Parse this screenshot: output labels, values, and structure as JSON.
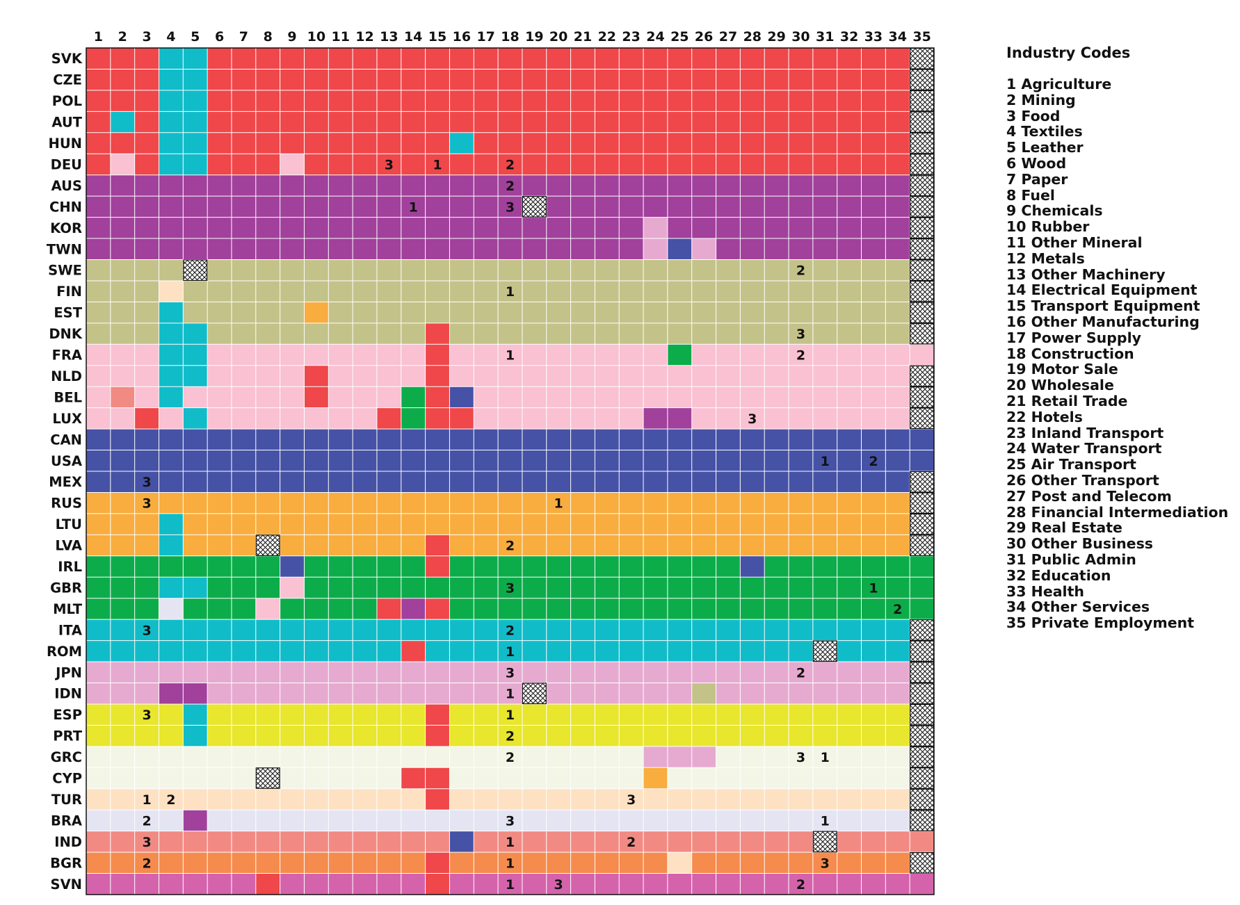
{
  "chart_data": {
    "type": "heatmap",
    "x_categories": [
      "1",
      "2",
      "3",
      "4",
      "5",
      "6",
      "7",
      "8",
      "9",
      "10",
      "11",
      "12",
      "13",
      "14",
      "15",
      "16",
      "17",
      "18",
      "19",
      "20",
      "21",
      "22",
      "23",
      "24",
      "25",
      "26",
      "27",
      "28",
      "29",
      "30",
      "31",
      "32",
      "33",
      "34",
      "35"
    ],
    "y_categories": [
      "SVK",
      "CZE",
      "POL",
      "AUT",
      "HUN",
      "DEU",
      "AUS",
      "CHN",
      "KOR",
      "TWN",
      "SWE",
      "FIN",
      "EST",
      "DNK",
      "FRA",
      "NLD",
      "BEL",
      "LUX",
      "CAN",
      "USA",
      "MEX",
      "RUS",
      "LTU",
      "LVA",
      "IRL",
      "GBR",
      "MLT",
      "ITA",
      "ROM",
      "JPN",
      "IDN",
      "ESP",
      "PRT",
      "GRC",
      "CYP",
      "TUR",
      "BRA",
      "IND",
      "BGR",
      "SVN"
    ],
    "palette": {
      "R": "#ef474a",
      "P": "#a1419c",
      "O": "#c3c289",
      "K": "#f9c1d2",
      "B": "#4652a6",
      "Y": "#f8ad3e",
      "G": "#0dac4a",
      "C": "#11bcc9",
      "M": "#e6aad0",
      "E": "#e8e62d",
      "W": "#f3f6e6",
      "T": "#fde1c2",
      "V": "#e4e4f2",
      "S": "#f28a84",
      "F": "#f58b4c",
      "N": "#d563ac",
      "X": "#ffffff"
    },
    "row_base": [
      "R",
      "R",
      "R",
      "R",
      "R",
      "R",
      "P",
      "P",
      "P",
      "P",
      "O",
      "O",
      "O",
      "O",
      "K",
      "K",
      "K",
      "K",
      "B",
      "B",
      "B",
      "Y",
      "Y",
      "Y",
      "G",
      "G",
      "G",
      "C",
      "C",
      "M",
      "M",
      "E",
      "E",
      "W",
      "W",
      "T",
      "V",
      "S",
      "F",
      "N"
    ],
    "overrides": [
      [
        0,
        3,
        "C"
      ],
      [
        0,
        4,
        "C"
      ],
      [
        0,
        34,
        "X"
      ],
      [
        1,
        3,
        "C"
      ],
      [
        1,
        4,
        "C"
      ],
      [
        1,
        34,
        "X"
      ],
      [
        2,
        3,
        "C"
      ],
      [
        2,
        4,
        "C"
      ],
      [
        2,
        34,
        "X"
      ],
      [
        3,
        1,
        "C"
      ],
      [
        3,
        3,
        "C"
      ],
      [
        3,
        4,
        "C"
      ],
      [
        3,
        34,
        "X"
      ],
      [
        4,
        3,
        "C"
      ],
      [
        4,
        4,
        "C"
      ],
      [
        4,
        15,
        "C"
      ],
      [
        4,
        34,
        "X"
      ],
      [
        5,
        1,
        "K"
      ],
      [
        5,
        3,
        "C"
      ],
      [
        5,
        4,
        "C"
      ],
      [
        5,
        8,
        "K"
      ],
      [
        5,
        34,
        "X"
      ],
      [
        6,
        34,
        "X"
      ],
      [
        7,
        18,
        "X"
      ],
      [
        7,
        34,
        "X"
      ],
      [
        8,
        23,
        "M"
      ],
      [
        8,
        34,
        "X"
      ],
      [
        9,
        23,
        "M"
      ],
      [
        9,
        24,
        "B"
      ],
      [
        9,
        25,
        "M"
      ],
      [
        9,
        34,
        "X"
      ],
      [
        10,
        4,
        "X"
      ],
      [
        10,
        34,
        "X"
      ],
      [
        11,
        3,
        "T"
      ],
      [
        11,
        34,
        "X"
      ],
      [
        12,
        3,
        "C"
      ],
      [
        12,
        9,
        "Y"
      ],
      [
        12,
        34,
        "X"
      ],
      [
        13,
        3,
        "C"
      ],
      [
        13,
        4,
        "C"
      ],
      [
        13,
        14,
        "R"
      ],
      [
        13,
        34,
        "X"
      ],
      [
        14,
        3,
        "C"
      ],
      [
        14,
        4,
        "C"
      ],
      [
        14,
        14,
        "R"
      ],
      [
        14,
        24,
        "G"
      ],
      [
        15,
        3,
        "C"
      ],
      [
        15,
        4,
        "C"
      ],
      [
        15,
        9,
        "R"
      ],
      [
        15,
        14,
        "R"
      ],
      [
        15,
        34,
        "X"
      ],
      [
        16,
        1,
        "S"
      ],
      [
        16,
        3,
        "C"
      ],
      [
        16,
        9,
        "R"
      ],
      [
        16,
        13,
        "G"
      ],
      [
        16,
        14,
        "R"
      ],
      [
        16,
        15,
        "B"
      ],
      [
        16,
        34,
        "X"
      ],
      [
        17,
        2,
        "R"
      ],
      [
        17,
        4,
        "C"
      ],
      [
        17,
        12,
        "R"
      ],
      [
        17,
        13,
        "G"
      ],
      [
        17,
        14,
        "R"
      ],
      [
        17,
        15,
        "R"
      ],
      [
        17,
        23,
        "P"
      ],
      [
        17,
        24,
        "P"
      ],
      [
        17,
        34,
        "X"
      ],
      [
        20,
        34,
        "X"
      ],
      [
        21,
        34,
        "X"
      ],
      [
        22,
        3,
        "C"
      ],
      [
        22,
        34,
        "X"
      ],
      [
        23,
        3,
        "C"
      ],
      [
        23,
        7,
        "X"
      ],
      [
        23,
        14,
        "R"
      ],
      [
        23,
        34,
        "X"
      ],
      [
        24,
        8,
        "B"
      ],
      [
        24,
        14,
        "R"
      ],
      [
        24,
        27,
        "B"
      ],
      [
        25,
        3,
        "C"
      ],
      [
        25,
        4,
        "C"
      ],
      [
        25,
        8,
        "K"
      ],
      [
        26,
        3,
        "V"
      ],
      [
        26,
        7,
        "K"
      ],
      [
        26,
        12,
        "R"
      ],
      [
        26,
        13,
        "P"
      ],
      [
        26,
        14,
        "R"
      ],
      [
        27,
        34,
        "X"
      ],
      [
        28,
        13,
        "R"
      ],
      [
        28,
        30,
        "X"
      ],
      [
        28,
        34,
        "X"
      ],
      [
        29,
        34,
        "X"
      ],
      [
        30,
        3,
        "P"
      ],
      [
        30,
        4,
        "P"
      ],
      [
        30,
        18,
        "X"
      ],
      [
        30,
        25,
        "O"
      ],
      [
        30,
        34,
        "X"
      ],
      [
        31,
        4,
        "C"
      ],
      [
        31,
        14,
        "R"
      ],
      [
        31,
        34,
        "X"
      ],
      [
        32,
        4,
        "C"
      ],
      [
        32,
        14,
        "R"
      ],
      [
        32,
        34,
        "X"
      ],
      [
        33,
        23,
        "M"
      ],
      [
        33,
        24,
        "M"
      ],
      [
        33,
        25,
        "M"
      ],
      [
        33,
        34,
        "X"
      ],
      [
        34,
        7,
        "X"
      ],
      [
        34,
        13,
        "R"
      ],
      [
        34,
        14,
        "R"
      ],
      [
        34,
        23,
        "Y"
      ],
      [
        34,
        34,
        "X"
      ],
      [
        35,
        14,
        "R"
      ],
      [
        35,
        34,
        "X"
      ],
      [
        36,
        4,
        "P"
      ],
      [
        36,
        34,
        "X"
      ],
      [
        37,
        15,
        "B"
      ],
      [
        37,
        30,
        "X"
      ],
      [
        38,
        14,
        "R"
      ],
      [
        38,
        24,
        "T"
      ],
      [
        38,
        34,
        "X"
      ],
      [
        39,
        7,
        "R"
      ],
      [
        39,
        14,
        "R"
      ]
    ],
    "cell_labels": [
      [
        5,
        12,
        "3"
      ],
      [
        5,
        14,
        "1"
      ],
      [
        5,
        17,
        "2"
      ],
      [
        6,
        17,
        "2"
      ],
      [
        7,
        13,
        "1"
      ],
      [
        7,
        17,
        "3"
      ],
      [
        10,
        29,
        "2"
      ],
      [
        11,
        17,
        "1"
      ],
      [
        13,
        29,
        "3"
      ],
      [
        14,
        17,
        "1"
      ],
      [
        14,
        29,
        "2"
      ],
      [
        17,
        27,
        "3"
      ],
      [
        19,
        30,
        "1"
      ],
      [
        19,
        32,
        "2"
      ],
      [
        20,
        2,
        "3"
      ],
      [
        21,
        2,
        "3"
      ],
      [
        21,
        19,
        "1"
      ],
      [
        23,
        17,
        "2"
      ],
      [
        25,
        17,
        "3"
      ],
      [
        25,
        32,
        "1"
      ],
      [
        26,
        33,
        "2"
      ],
      [
        27,
        2,
        "3"
      ],
      [
        27,
        17,
        "2"
      ],
      [
        28,
        17,
        "1"
      ],
      [
        29,
        17,
        "3"
      ],
      [
        29,
        29,
        "2"
      ],
      [
        30,
        17,
        "1"
      ],
      [
        31,
        2,
        "3"
      ],
      [
        31,
        17,
        "1"
      ],
      [
        32,
        17,
        "2"
      ],
      [
        33,
        17,
        "2"
      ],
      [
        33,
        29,
        "3"
      ],
      [
        33,
        30,
        "1"
      ],
      [
        35,
        2,
        "1"
      ],
      [
        35,
        3,
        "2"
      ],
      [
        35,
        22,
        "3"
      ],
      [
        36,
        2,
        "2"
      ],
      [
        36,
        17,
        "3"
      ],
      [
        36,
        30,
        "1"
      ],
      [
        37,
        2,
        "3"
      ],
      [
        37,
        17,
        "1"
      ],
      [
        37,
        22,
        "2"
      ],
      [
        38,
        2,
        "2"
      ],
      [
        38,
        17,
        "1"
      ],
      [
        38,
        30,
        "3"
      ],
      [
        39,
        17,
        "1"
      ],
      [
        39,
        19,
        "3"
      ],
      [
        39,
        29,
        "2"
      ]
    ]
  },
  "legend": {
    "title": "Industry Codes",
    "items": [
      "1 Agriculture",
      "2 Mining",
      "3 Food",
      "4 Textiles",
      "5 Leather",
      "6 Wood",
      "7 Paper",
      "8 Fuel",
      "9 Chemicals",
      "10 Rubber",
      "11 Other Mineral",
      "12 Metals",
      "13 Other Machinery",
      "14 Electrical Equipment",
      "15 Transport Equipment",
      "16 Other Manufacturing",
      "17 Power Supply",
      "18 Construction",
      "19 Motor Sale",
      "20 Wholesale",
      "21 Retail Trade",
      "22 Hotels",
      "23 Inland Transport",
      "24 Water Transport",
      "25 Air Transport",
      "26 Other Transport",
      "27 Post and Telecom",
      "28 Financial Intermediation",
      "29 Real Estate",
      "30 Other Business",
      "31 Public Admin",
      "32 Education",
      "33 Health",
      "34 Other Services",
      "35 Private Employment"
    ]
  }
}
